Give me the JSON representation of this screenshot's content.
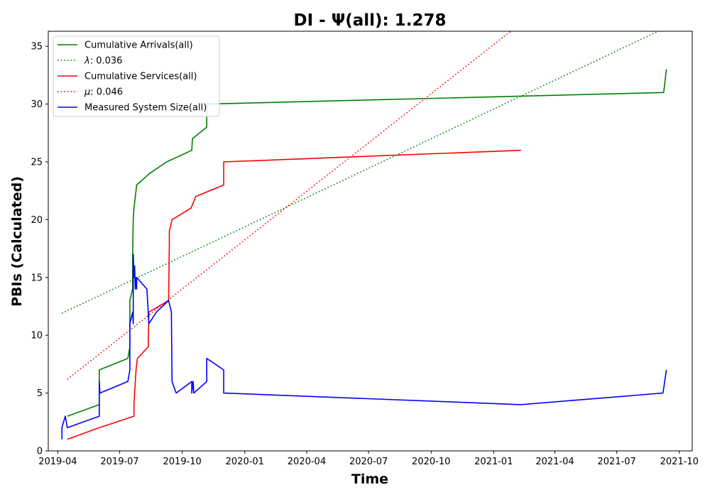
{
  "chart_data": {
    "type": "line",
    "title": "DI -  Ψ(all): 1.278",
    "xlabel": "Time",
    "ylabel": "PBIs (Calculated)",
    "xlim": [
      "2019-03-18",
      "2021-10-20"
    ],
    "ylim": [
      0,
      36.3
    ],
    "x_ticks": [
      "2019-04",
      "2019-07",
      "2019-10",
      "2020-01",
      "2020-04",
      "2020-07",
      "2020-10",
      "2021-01",
      "2021-04",
      "2021-07",
      "2021-10"
    ],
    "y_ticks": [
      0,
      5,
      10,
      15,
      20,
      25,
      30,
      35
    ],
    "grid": false,
    "legend_placement": "top-left",
    "series": [
      {
        "name": "Cumulative Arrivals(all)",
        "style": "solid",
        "color": "#008000",
        "x": [
          "2019-04-15",
          "2019-06-01",
          "2019-06-01",
          "2019-07-13",
          "2019-07-16",
          "2019-07-16",
          "2019-07-20",
          "2019-07-20",
          "2019-07-21",
          "2019-07-22",
          "2019-07-24",
          "2019-07-26",
          "2019-08-14",
          "2019-09-08",
          "2019-10-15",
          "2019-10-16",
          "2019-11-06",
          "2019-11-06",
          "2021-09-08",
          "2021-09-12"
        ],
        "y": [
          3,
          4,
          7,
          8,
          9,
          13,
          14,
          17,
          20,
          21,
          22,
          23,
          24,
          25,
          26,
          27,
          28,
          30,
          31,
          33
        ]
      },
      {
        "name": "λ: 0.036",
        "style": "dotted",
        "color": "#008000",
        "x": [
          "2019-04-07",
          "2021-08-31"
        ],
        "y": [
          11.9,
          36.3
        ]
      },
      {
        "name": "Cumulative Services(all)",
        "style": "solid",
        "color": "#ff0000",
        "x": [
          "2019-04-15",
          "2019-06-01",
          "2019-07-22",
          "2019-07-22",
          "2019-07-23",
          "2019-07-24",
          "2019-07-25",
          "2019-07-27",
          "2019-08-12",
          "2019-08-13",
          "2019-09-11",
          "2019-09-12",
          "2019-09-12",
          "2019-09-16",
          "2019-10-14",
          "2019-10-21",
          "2019-12-01",
          "2019-12-01",
          "2021-02-10"
        ],
        "y": [
          1,
          2,
          3,
          4,
          5,
          6,
          7,
          8,
          9,
          12,
          13,
          18,
          19,
          20,
          21,
          22,
          23,
          25,
          26
        ]
      },
      {
        "name": "μ: 0.046",
        "style": "dotted",
        "color": "#ff0000",
        "x": [
          "2019-04-15",
          "2021-01-26"
        ],
        "y": [
          6.2,
          36.3
        ]
      },
      {
        "name": "Measured System Size(all)",
        "style": "solid",
        "color": "#0000ff",
        "x": [
          "2019-04-07",
          "2019-04-07",
          "2019-04-12",
          "2019-04-15",
          "2019-06-01",
          "2019-06-01",
          "2019-06-02",
          "2019-07-13",
          "2019-07-16",
          "2019-07-16",
          "2019-07-20",
          "2019-07-21",
          "2019-07-21",
          "2019-07-22",
          "2019-07-23",
          "2019-07-24",
          "2019-07-25",
          "2019-07-26",
          "2019-07-26",
          "2019-08-10",
          "2019-08-13",
          "2019-08-24",
          "2019-09-11",
          "2019-09-15",
          "2019-09-16",
          "2019-09-22",
          "2019-10-15",
          "2019-10-15",
          "2019-10-17",
          "2019-10-18",
          "2019-11-06",
          "2019-11-06",
          "2019-12-01",
          "2019-12-01",
          "2021-02-10",
          "2021-09-07",
          "2021-09-12"
        ],
        "y": [
          1,
          2,
          3,
          2,
          3,
          6,
          5,
          6,
          7,
          11,
          12,
          11,
          17,
          15,
          16,
          14,
          15,
          14,
          15,
          14,
          11,
          12,
          13,
          12,
          6,
          5,
          6,
          5,
          6,
          5,
          6,
          8,
          7,
          5,
          4,
          5,
          7
        ]
      }
    ]
  }
}
